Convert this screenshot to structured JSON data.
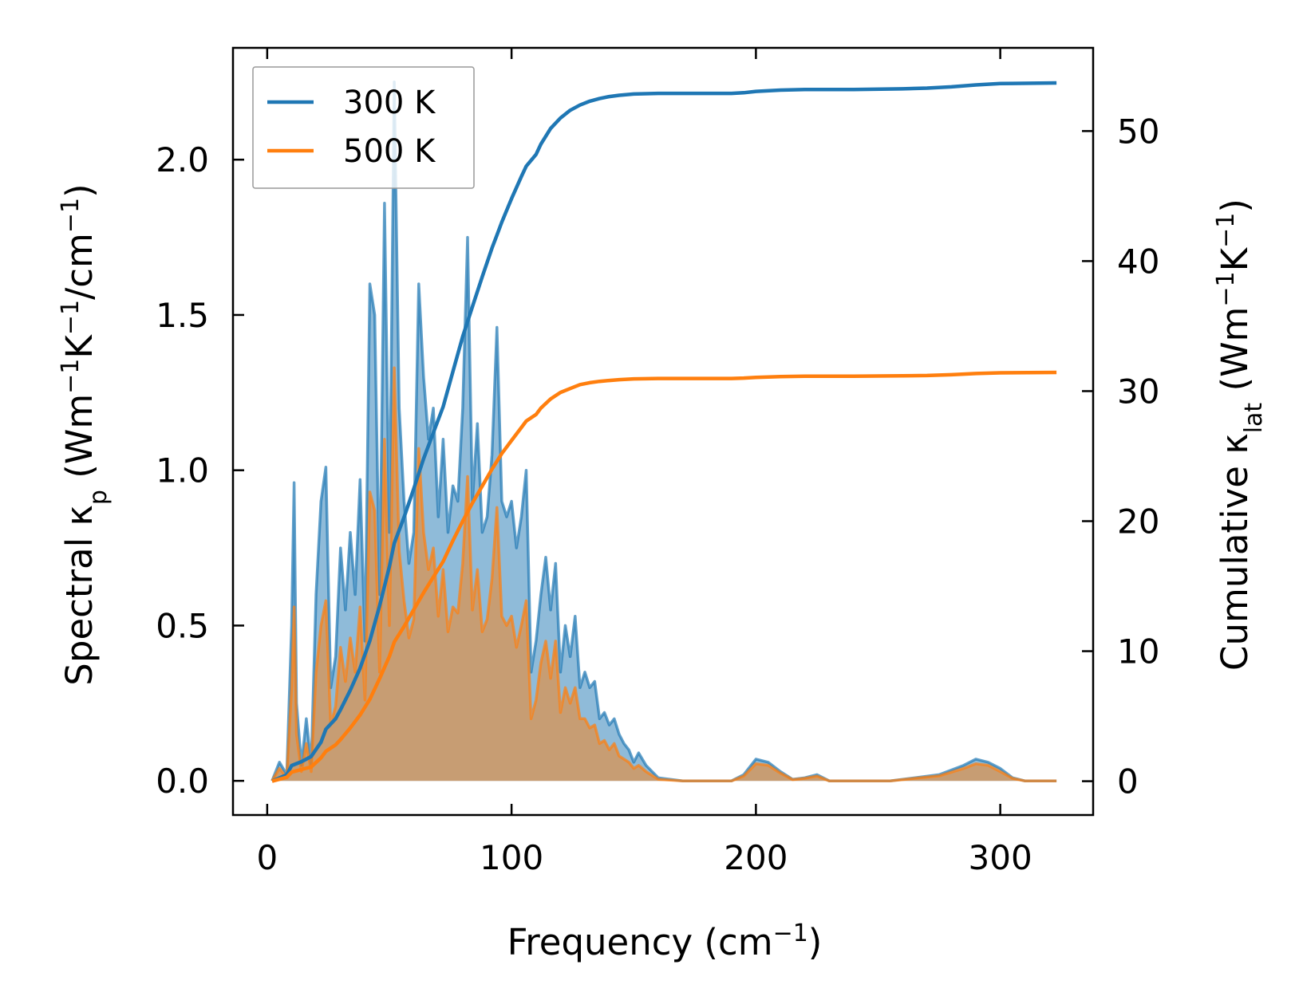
{
  "chart_data": {
    "type": "line",
    "title": "",
    "xlabel": {
      "main": "Frequency (cm",
      "sup": "−1",
      "end": ")"
    },
    "ylabel_left": {
      "p1": "Spectral κ",
      "sub": "p",
      "p2": " (Wm",
      "sup1": "−1",
      "p3": "K",
      "sup2": "−1",
      "p4": "/cm",
      "sup3": "−1",
      "p5": ")"
    },
    "ylabel_right": {
      "p1": "Cumulative κ",
      "sub": "lat",
      "p2": " (Wm",
      "sup1": "−1",
      "p3": "K",
      "sup2": "−1",
      "p4": ")"
    },
    "xlim": [
      -14,
      338
    ],
    "ylim_left": [
      -0.11,
      2.36
    ],
    "ylim_right": [
      -2.6,
      56.4
    ],
    "x_ticks": [
      "0",
      "100",
      "200",
      "300"
    ],
    "x_tick_values": [
      0,
      100,
      200,
      300
    ],
    "y_left_ticks": [
      "0.0",
      "0.5",
      "1.0",
      "1.5",
      "2.0"
    ],
    "y_left_tick_values": [
      0,
      0.5,
      1.0,
      1.5,
      2.0
    ],
    "y_right_ticks": [
      "0",
      "10",
      "20",
      "30",
      "40",
      "50"
    ],
    "y_right_tick_values": [
      0,
      10,
      20,
      30,
      40,
      50
    ],
    "legend": {
      "placement": "top-left",
      "entries": [
        "300 K",
        "500 K"
      ]
    },
    "grid": false,
    "colors": {
      "s300": "#1f77b4",
      "s500": "#ff7f0e",
      "fill300": "#1f77b4",
      "fill500": "#ff7f0e"
    },
    "spectral": [
      {
        "name": "300 K",
        "x": [
          2,
          5,
          8,
          10,
          11,
          12,
          14,
          16,
          18,
          20,
          22,
          24,
          26,
          28,
          30,
          32,
          34,
          36,
          38,
          40,
          42,
          44,
          46,
          48,
          50,
          52,
          54,
          56,
          58,
          60,
          62,
          64,
          66,
          68,
          70,
          72,
          74,
          76,
          78,
          80,
          82,
          84,
          86,
          88,
          90,
          92,
          94,
          96,
          98,
          100,
          102,
          104,
          106,
          108,
          110,
          112,
          114,
          116,
          118,
          120,
          122,
          124,
          126,
          128,
          130,
          132,
          134,
          136,
          138,
          140,
          142,
          144,
          146,
          148,
          150,
          152,
          155,
          160,
          170,
          180,
          190,
          195,
          200,
          205,
          210,
          215,
          220,
          225,
          230,
          240,
          255,
          265,
          275,
          285,
          290,
          295,
          300,
          305,
          310,
          315,
          323
        ],
        "y": [
          0,
          0.06,
          0.02,
          0.5,
          0.96,
          0.25,
          0.05,
          0.2,
          0.05,
          0.6,
          0.9,
          1.01,
          0.3,
          0.4,
          0.75,
          0.55,
          0.8,
          0.6,
          0.97,
          0.45,
          1.6,
          1.5,
          0.6,
          1.86,
          0.8,
          2.25,
          1.2,
          0.9,
          0.7,
          0.8,
          1.6,
          1.3,
          1.1,
          1.2,
          0.85,
          1.1,
          0.8,
          0.95,
          0.9,
          1.2,
          1.75,
          0.9,
          1.15,
          0.8,
          0.85,
          1.05,
          1.46,
          0.9,
          0.85,
          0.9,
          0.75,
          0.85,
          1.0,
          0.35,
          0.45,
          0.6,
          0.72,
          0.55,
          0.7,
          0.35,
          0.5,
          0.4,
          0.53,
          0.3,
          0.35,
          0.3,
          0.32,
          0.2,
          0.22,
          0.18,
          0.2,
          0.15,
          0.12,
          0.1,
          0.06,
          0.09,
          0.05,
          0.01,
          0,
          0,
          0,
          0.02,
          0.07,
          0.06,
          0.03,
          0.005,
          0.01,
          0.02,
          0,
          0,
          0,
          0.01,
          0.02,
          0.05,
          0.07,
          0.06,
          0.04,
          0.01,
          0,
          0,
          0
        ]
      },
      {
        "name": "500 K",
        "x": [
          2,
          5,
          8,
          10,
          11,
          12,
          14,
          16,
          18,
          20,
          22,
          24,
          26,
          28,
          30,
          32,
          34,
          36,
          38,
          40,
          42,
          44,
          46,
          48,
          50,
          52,
          54,
          56,
          58,
          60,
          62,
          64,
          66,
          68,
          70,
          72,
          74,
          76,
          78,
          80,
          82,
          84,
          86,
          88,
          90,
          92,
          94,
          96,
          98,
          100,
          102,
          104,
          106,
          108,
          110,
          112,
          114,
          116,
          118,
          120,
          122,
          124,
          126,
          128,
          130,
          132,
          134,
          136,
          138,
          140,
          142,
          144,
          146,
          148,
          150,
          152,
          155,
          160,
          170,
          180,
          190,
          195,
          200,
          205,
          210,
          215,
          220,
          225,
          230,
          240,
          255,
          265,
          275,
          285,
          290,
          295,
          300,
          305,
          310,
          315,
          323
        ],
        "y": [
          0,
          0.04,
          0.01,
          0.3,
          0.56,
          0.15,
          0.03,
          0.12,
          0.03,
          0.35,
          0.5,
          0.58,
          0.18,
          0.24,
          0.43,
          0.32,
          0.46,
          0.35,
          0.56,
          0.26,
          0.93,
          0.87,
          0.35,
          1.1,
          0.5,
          1.33,
          0.74,
          0.58,
          0.46,
          0.52,
          1.07,
          0.8,
          0.68,
          0.75,
          0.53,
          0.68,
          0.48,
          0.56,
          0.54,
          0.7,
          0.98,
          0.55,
          0.68,
          0.48,
          0.52,
          0.65,
          0.88,
          0.53,
          0.5,
          0.53,
          0.43,
          0.5,
          0.58,
          0.2,
          0.26,
          0.38,
          0.45,
          0.33,
          0.45,
          0.22,
          0.3,
          0.25,
          0.3,
          0.2,
          0.2,
          0.17,
          0.18,
          0.12,
          0.13,
          0.1,
          0.12,
          0.08,
          0.07,
          0.06,
          0.04,
          0.05,
          0.03,
          0.005,
          0,
          0,
          0,
          0.015,
          0.055,
          0.05,
          0.025,
          0.004,
          0.008,
          0.015,
          0,
          0,
          0,
          0.008,
          0.016,
          0.04,
          0.055,
          0.05,
          0.03,
          0.008,
          0,
          0,
          0
        ]
      }
    ],
    "cumulative": [
      {
        "name": "300 K",
        "x": [
          2,
          8,
          10,
          14,
          18,
          22,
          24,
          28,
          30,
          34,
          38,
          42,
          46,
          50,
          52,
          56,
          60,
          64,
          68,
          72,
          76,
          80,
          84,
          88,
          92,
          94,
          96,
          100,
          104,
          106,
          110,
          112,
          116,
          120,
          124,
          128,
          132,
          136,
          140,
          144,
          150,
          160,
          170,
          180,
          190,
          195,
          200,
          210,
          220,
          240,
          260,
          270,
          280,
          290,
          300,
          323
        ],
        "y": [
          0,
          0.5,
          1.2,
          1.5,
          1.9,
          3.0,
          4.0,
          4.8,
          5.5,
          7.0,
          8.7,
          10.8,
          13.5,
          16.5,
          18.3,
          20.3,
          22.5,
          24.8,
          26.8,
          28.8,
          31.5,
          34.2,
          36.5,
          38.8,
          41.0,
          42.0,
          43.0,
          44.8,
          46.5,
          47.3,
          48.2,
          49.0,
          50.2,
          51.0,
          51.6,
          52.0,
          52.3,
          52.5,
          52.65,
          52.75,
          52.85,
          52.9,
          52.9,
          52.9,
          52.9,
          52.95,
          53.05,
          53.15,
          53.2,
          53.2,
          53.25,
          53.3,
          53.4,
          53.55,
          53.65,
          53.7
        ]
      },
      {
        "name": "500 K",
        "x": [
          2,
          8,
          10,
          14,
          18,
          22,
          24,
          28,
          30,
          34,
          38,
          42,
          46,
          50,
          52,
          56,
          60,
          64,
          68,
          72,
          76,
          80,
          84,
          88,
          92,
          94,
          96,
          100,
          104,
          106,
          110,
          112,
          116,
          120,
          124,
          128,
          132,
          136,
          140,
          144,
          150,
          160,
          170,
          180,
          190,
          195,
          200,
          210,
          220,
          240,
          260,
          270,
          280,
          290,
          300,
          323
        ],
        "y": [
          0,
          0.3,
          0.7,
          0.9,
          1.1,
          1.8,
          2.3,
          2.8,
          3.2,
          4.1,
          5.1,
          6.3,
          7.9,
          9.6,
          10.7,
          11.9,
          13.2,
          14.5,
          15.7,
          16.9,
          18.5,
          20.0,
          21.4,
          22.7,
          24.0,
          24.6,
          25.2,
          26.2,
          27.2,
          27.7,
          28.2,
          28.7,
          29.4,
          29.9,
          30.2,
          30.5,
          30.65,
          30.75,
          30.82,
          30.88,
          30.94,
          30.97,
          30.97,
          30.97,
          30.97,
          31.0,
          31.06,
          31.12,
          31.15,
          31.15,
          31.18,
          31.2,
          31.26,
          31.35,
          31.41,
          31.44
        ]
      }
    ]
  }
}
